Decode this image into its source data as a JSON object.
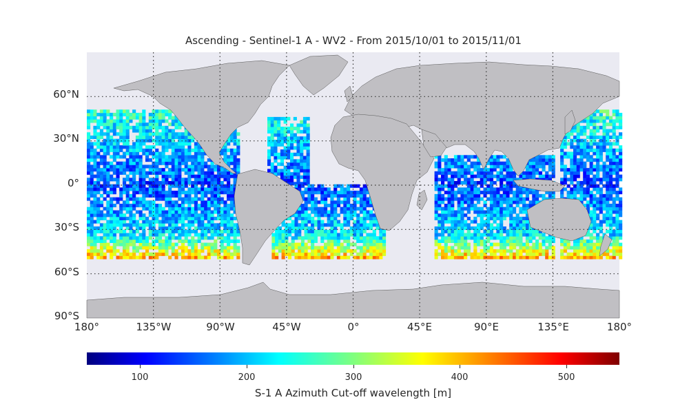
{
  "title": "Ascending - Sentinel-1 A - WV2 - From 2015/10/01 to 2015/11/01",
  "lat_ticks": [
    "60°N",
    "30°N",
    "0°",
    "30°S",
    "60°S",
    "90°S"
  ],
  "lon_ticks": [
    "180°",
    "135°W",
    "90°W",
    "45°W",
    "0°",
    "45°E",
    "90°E",
    "135°E",
    "180°"
  ],
  "colorbar": {
    "label": "S-1 A Azimuth Cut-off wavelength [m]",
    "ticks": [
      "100",
      "200",
      "300",
      "400",
      "500"
    ],
    "tick_values": [
      100,
      200,
      300,
      400,
      500
    ],
    "range": [
      50,
      550
    ],
    "colormap": "jet"
  },
  "colors": {
    "ocean": "#eaeaf2",
    "land": "#c0bfc3",
    "coast": "#555555",
    "grid": "#333333"
  },
  "map_extent": {
    "lon": [
      -180,
      180
    ],
    "lat": [
      -90,
      90
    ]
  },
  "data_swaths": [
    {
      "region": "Pacific Ocean",
      "lon": [
        -180,
        -78
      ],
      "lat": [
        -50,
        50
      ]
    },
    {
      "region": "North/Central Atlantic",
      "lon": [
        -58,
        -30
      ],
      "lat": [
        0,
        45
      ]
    },
    {
      "region": "South Atlantic",
      "lon": [
        -55,
        20
      ],
      "lat": [
        -50,
        0
      ]
    },
    {
      "region": "Indian Ocean",
      "lon": [
        55,
        135
      ],
      "lat": [
        -50,
        20
      ]
    },
    {
      "region": "Western Pacific",
      "lon": [
        140,
        180
      ],
      "lat": [
        -50,
        50
      ]
    }
  ]
}
